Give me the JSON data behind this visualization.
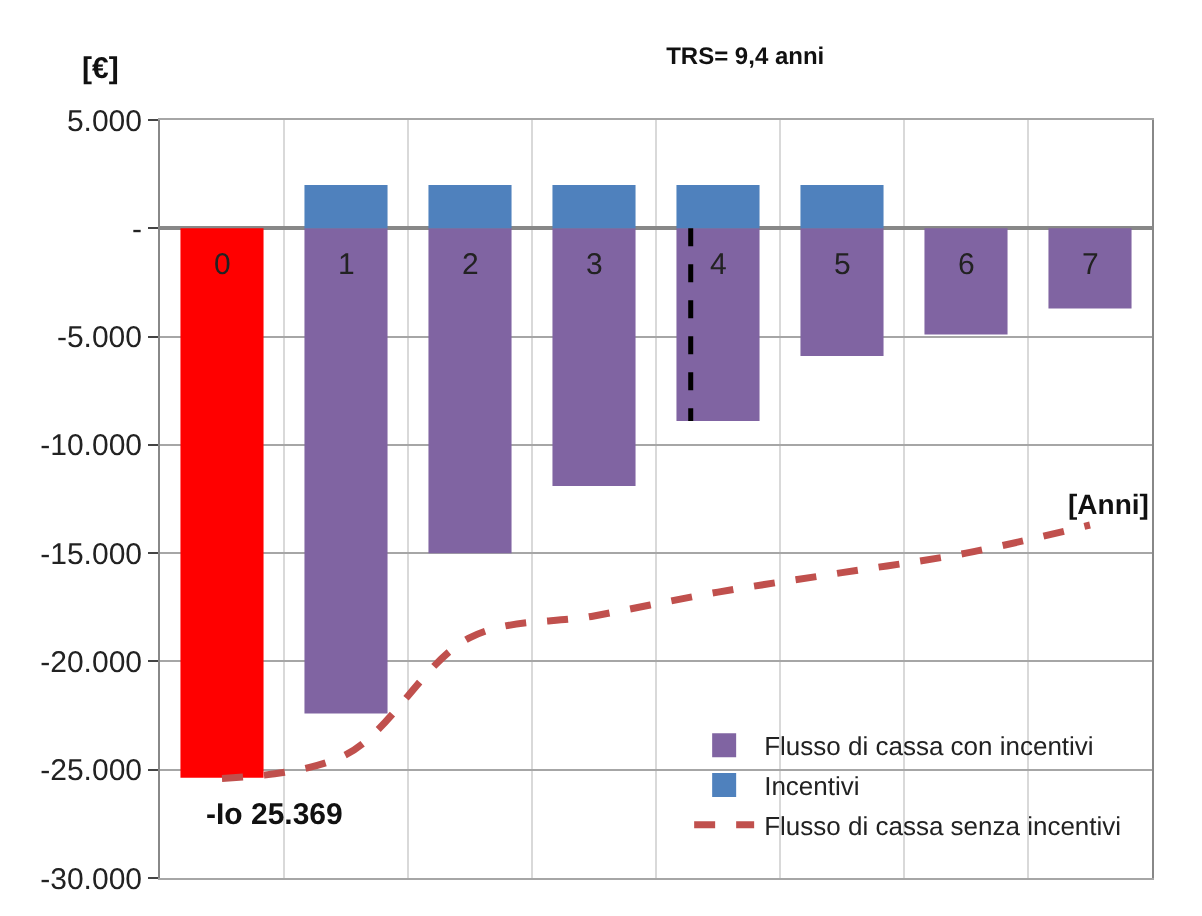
{
  "chart_data": {
    "type": "bar",
    "title": "TRS= 9,4 anni",
    "xlabel": "[Anni]",
    "ylabel": "[€]",
    "stacked": true,
    "categories": [
      "0",
      "1",
      "2",
      "3",
      "4",
      "5",
      "6",
      "7"
    ],
    "series": [
      {
        "name": "Flusso di cassa con incentivi",
        "color": "#8064a2",
        "colors": [
          "#ff0000",
          "#8064a2",
          "#8064a2",
          "#8064a2",
          "#8064a2",
          "#8064a2",
          "#8064a2",
          "#8064a2"
        ],
        "values": [
          -25369,
          -22400,
          -15000,
          -11900,
          -8900,
          -5900,
          -4900,
          -3700
        ]
      },
      {
        "name": "Incentivi",
        "color": "#4f81bd",
        "values": [
          null,
          2000,
          2000,
          2000,
          2000,
          2000,
          null,
          null
        ]
      },
      {
        "name": "Flusso di cassa senza incentivi",
        "type": "line",
        "line_style": "dashed",
        "marker": "none",
        "color": "#c0504d",
        "values": [
          -25400,
          -24300,
          -18900,
          -17900,
          -16800,
          -15900,
          -15000,
          -13700
        ]
      },
      {
        "type": "line",
        "line_style": "dashed",
        "marker": "none",
        "color": "#000000",
        "x": [
          "4",
          "4"
        ],
        "values": [
          0,
          -8900
        ]
      }
    ],
    "annotations": [
      {
        "text": "-Io 25.369",
        "x": "0",
        "y": -25369
      }
    ],
    "ylim": [
      -30000,
      5000
    ],
    "yticks": [
      {
        "value": 5000,
        "label": "5.000"
      },
      {
        "value": 0,
        "label": "-"
      },
      {
        "value": -5000,
        "label": "-5.000"
      },
      {
        "value": -10000,
        "label": "-10.000"
      },
      {
        "value": -15000,
        "label": "-15.000"
      },
      {
        "value": -20000,
        "label": "-20.000"
      },
      {
        "value": -25000,
        "label": "-25.000"
      },
      {
        "value": -30000,
        "label": "-30.000"
      }
    ],
    "grid": true,
    "legend": "bottom right"
  }
}
